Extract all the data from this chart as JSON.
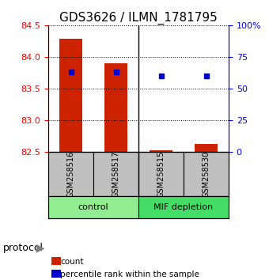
{
  "title": "GDS3626 / ILMN_1781795",
  "samples": [
    "GSM258516",
    "GSM258517",
    "GSM258515",
    "GSM258530"
  ],
  "groups": [
    {
      "name": "control",
      "color": "#90EE90"
    },
    {
      "name": "MIF depletion",
      "color": "#44DD66"
    }
  ],
  "bar_values": [
    84.28,
    83.9,
    82.52,
    82.62
  ],
  "bar_base": 82.5,
  "percentile_values": [
    63,
    63,
    60,
    60
  ],
  "ylim_left": [
    82.5,
    84.5
  ],
  "ylim_right": [
    0,
    100
  ],
  "yticks_left": [
    82.5,
    83.0,
    83.5,
    84.0,
    84.5
  ],
  "yticks_right": [
    0,
    25,
    50,
    75,
    100
  ],
  "ytick_labels_right": [
    "0",
    "25",
    "50",
    "75",
    "100%"
  ],
  "bar_color": "#CC2200",
  "dot_color": "#0000CC",
  "protocol_label": "protocol",
  "legend_items": [
    {
      "color": "#CC2200",
      "label": "count"
    },
    {
      "color": "#0000CC",
      "label": "percentile rank within the sample"
    }
  ],
  "sample_box_color": "#C0C0C0",
  "title_fontsize": 11,
  "tick_fontsize": 8,
  "label_fontsize": 9
}
